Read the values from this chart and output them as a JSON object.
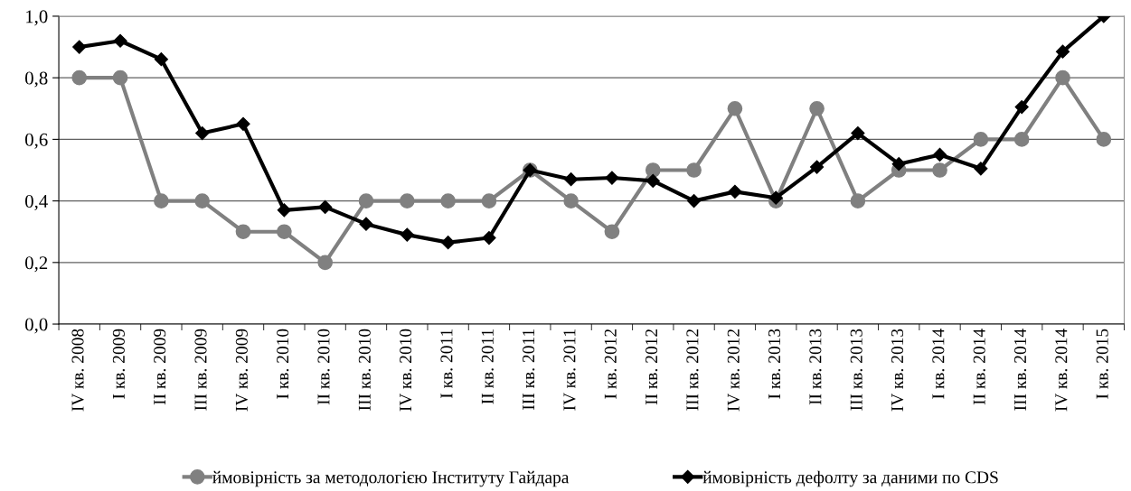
{
  "chart_data": {
    "type": "line",
    "categories": [
      "IV кв. 2008",
      "I кв. 2009",
      "II кв. 2009",
      "III кв. 2009",
      "IV кв. 2009",
      "I кв. 2010",
      "II кв. 2010",
      "III кв. 2010",
      "IV кв. 2010",
      "I кв. 2011",
      "II кв. 2011",
      "III кв. 2011",
      "IV кв. 2011",
      "I кв. 2012",
      "II кв. 2012",
      "III кв. 2012",
      "IV кв. 2012",
      "I кв. 2013",
      "II кв. 2013",
      "III кв. 2013",
      "IV кв. 2013",
      "I кв. 2014",
      "II кв. 2014",
      "III кв. 2014",
      "IV кв. 2014",
      "I кв. 2015"
    ],
    "series": [
      {
        "name": "ймовірність за методологією Інституту Гайдара",
        "color": "#808080",
        "marker": "circle",
        "values": [
          0.8,
          0.8,
          0.4,
          0.4,
          0.3,
          0.3,
          0.2,
          0.4,
          0.4,
          0.4,
          0.4,
          0.5,
          0.4,
          0.3,
          0.5,
          0.5,
          0.7,
          0.4,
          0.7,
          0.4,
          0.5,
          0.5,
          0.6,
          0.6,
          0.8,
          0.6
        ]
      },
      {
        "name": "ймовірність дефолту за даними по CDS",
        "color": "#000000",
        "marker": "diamond",
        "values": [
          0.9,
          0.92,
          0.86,
          0.62,
          0.65,
          0.37,
          0.38,
          0.325,
          0.29,
          0.265,
          0.28,
          0.5,
          0.47,
          0.475,
          0.465,
          0.4,
          0.43,
          0.41,
          0.51,
          0.62,
          0.52,
          0.55,
          0.505,
          0.705,
          0.885,
          1.0
        ]
      }
    ],
    "ylim": [
      0,
      1
    ],
    "yticks": [
      {
        "value": 0,
        "label": "0,0"
      },
      {
        "value": 0.2,
        "label": "0,2"
      },
      {
        "value": 0.4,
        "label": "0,4"
      },
      {
        "value": 0.6,
        "label": "0,6"
      },
      {
        "value": 0.8,
        "label": "0,8"
      },
      {
        "value": 1,
        "label": "1,0"
      }
    ],
    "grid": "y",
    "legend": "bottom",
    "line_style": "solid"
  }
}
